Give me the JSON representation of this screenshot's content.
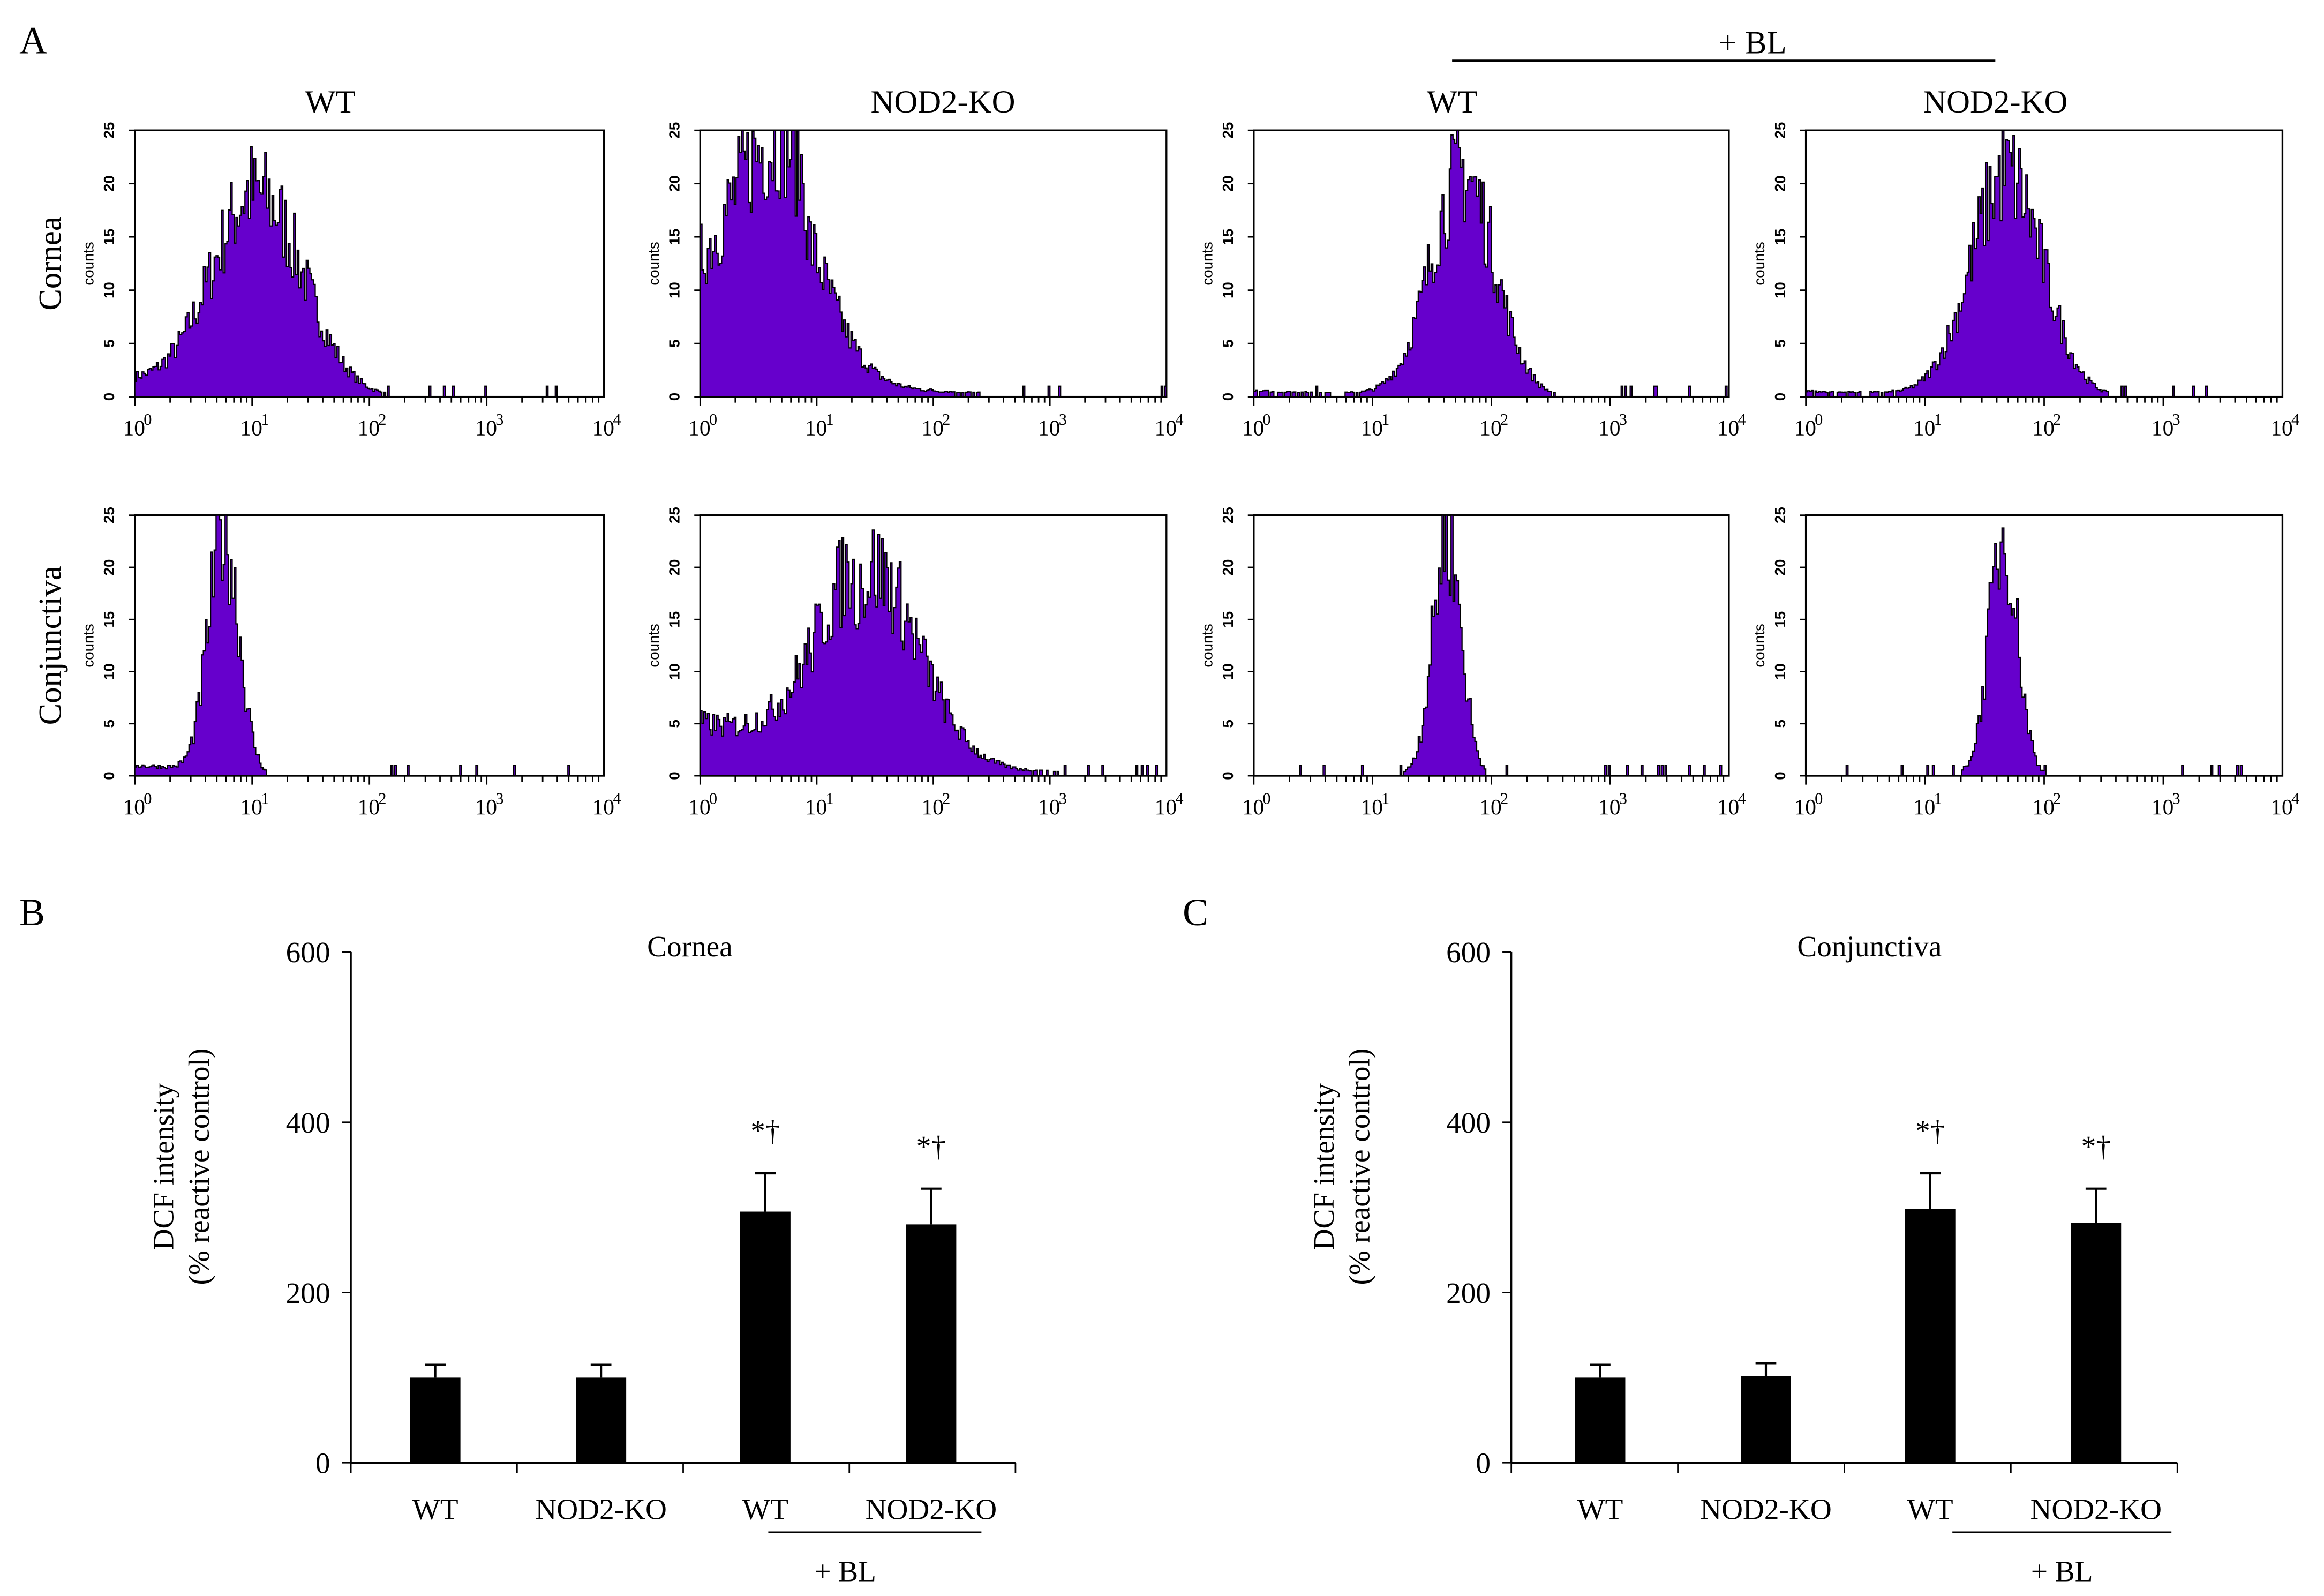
{
  "panel_labels": {
    "a": "A",
    "b": "B",
    "c": "C"
  },
  "chart_data": [
    {
      "type": "histogram-grid",
      "panel": "A",
      "treatment_label": "+ BL",
      "column_titles": [
        "WT",
        "NOD2-KO",
        "WT",
        "NOD2-KO"
      ],
      "row_labels": [
        "Cornea",
        "Conjunctiva"
      ],
      "ylabel": "counts",
      "yticks": [
        "0",
        "5",
        "10",
        "15",
        "20",
        "25"
      ],
      "ylim": [
        0,
        25
      ],
      "xscale": "log",
      "xticks": [
        "10",
        "10",
        "10",
        "10",
        "10"
      ],
      "xtick_exponents": [
        "0",
        "1",
        "2",
        "3",
        "4"
      ],
      "xlim_log10": [
        0,
        4
      ],
      "fill_color": "#6600cc",
      "histograms": [
        {
          "row": 0,
          "col": 0,
          "peak_log10": 1.05,
          "sigma": 0.38,
          "peak_count": 19,
          "floor": 1.5,
          "floor_end": 1.0
        },
        {
          "row": 0,
          "col": 1,
          "peak_log10": 0.65,
          "sigma": 0.38,
          "peak_count": 18,
          "floor": 9,
          "floor_end": 0.9,
          "tail": 1.2
        },
        {
          "row": 0,
          "col": 2,
          "peak_log10": 1.75,
          "sigma": 0.27,
          "peak_count": 21,
          "floor": 0.5,
          "floor_end": 1.2
        },
        {
          "row": 0,
          "col": 3,
          "peak_log10": 1.68,
          "sigma": 0.3,
          "peak_count": 21,
          "floor": 0.5,
          "floor_end": 1.2
        },
        {
          "row": 1,
          "col": 0,
          "peak_log10": 0.75,
          "sigma": 0.13,
          "peak_count": 23,
          "floor": 1,
          "floor_end": 0.9
        },
        {
          "row": 1,
          "col": 1,
          "peak_log10": 1.45,
          "sigma": 0.42,
          "peak_count": 19,
          "floor": 5,
          "floor_end": 1.3,
          "tail": 1
        },
        {
          "row": 1,
          "col": 2,
          "peak_log10": 1.62,
          "sigma": 0.12,
          "peak_count": 23,
          "floor": 0.3,
          "floor_end": 1.4
        },
        {
          "row": 1,
          "col": 3,
          "peak_log10": 1.65,
          "sigma": 0.12,
          "peak_count": 23,
          "floor": 0.3,
          "floor_end": 1.4
        }
      ]
    },
    {
      "type": "bar",
      "panel": "B",
      "title": "Cornea",
      "categories": [
        "WT",
        "NOD2-KO",
        "WT",
        "NOD2-KO"
      ],
      "values": [
        100,
        100,
        295,
        280
      ],
      "errors": [
        15,
        15,
        45,
        42
      ],
      "annotations": [
        "",
        "",
        "*†",
        "*†"
      ],
      "group_label": "+ BL",
      "ylabel": [
        "DCF intensity",
        "(% reactive control)"
      ],
      "yticks": [
        "0",
        "200",
        "400",
        "600"
      ],
      "ylim": [
        0,
        600
      ]
    },
    {
      "type": "bar",
      "panel": "C",
      "title": "Conjunctiva",
      "categories": [
        "WT",
        "NOD2-KO",
        "WT",
        "NOD2-KO"
      ],
      "values": [
        100,
        102,
        298,
        282
      ],
      "errors": [
        15,
        15,
        42,
        40
      ],
      "annotations": [
        "",
        "",
        "*†",
        "*†"
      ],
      "group_label": "+ BL",
      "ylabel": [
        "DCF intensity",
        "(% reactive control)"
      ],
      "yticks": [
        "0",
        "200",
        "400",
        "600"
      ],
      "ylim": [
        0,
        600
      ]
    }
  ]
}
